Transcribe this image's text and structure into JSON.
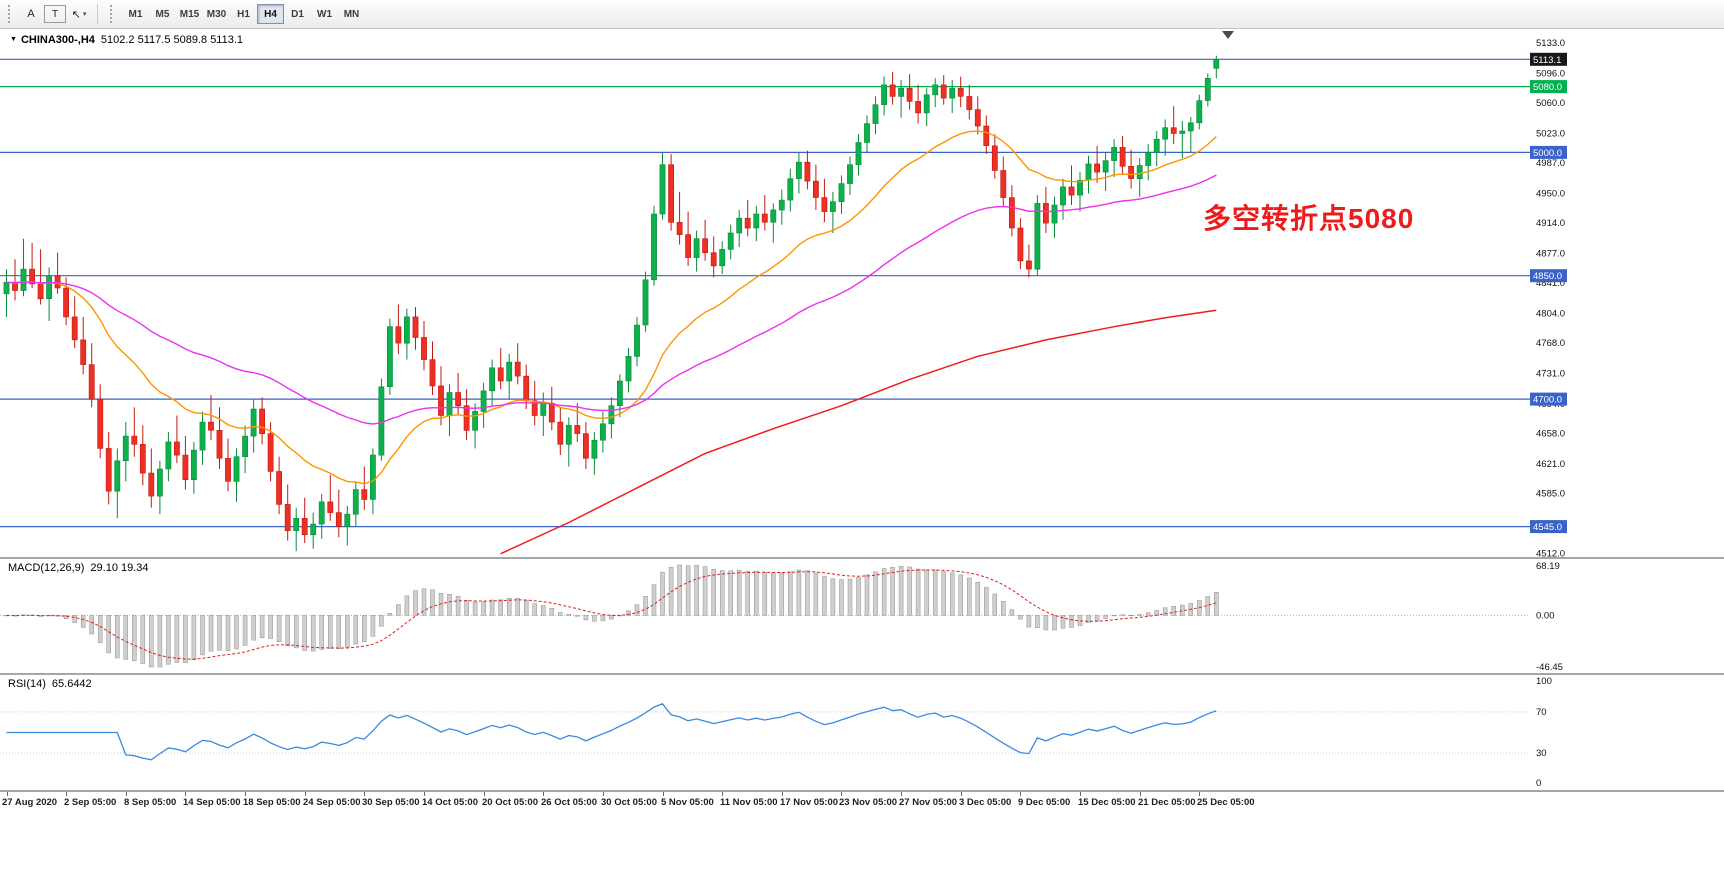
{
  "toolbar": {
    "tools": [
      {
        "name": "cursor-tool",
        "label": "A"
      },
      {
        "name": "text-tool",
        "label": "T"
      }
    ],
    "timeframes": [
      {
        "label": "M1"
      },
      {
        "label": "M5"
      },
      {
        "label": "M15"
      },
      {
        "label": "M30"
      },
      {
        "label": "H1"
      },
      {
        "label": "H4"
      },
      {
        "label": "D1"
      },
      {
        "label": "W1"
      },
      {
        "label": "MN"
      }
    ],
    "active_timeframe": "H4"
  },
  "chart": {
    "symbol_title": "CHINA300-,H4",
    "ohlc_display": "5102.2 5117.5 5089.8 5113.1",
    "annotation": {
      "text": "多空转折点5080",
      "color": "#ed1c1c"
    },
    "price_axis": {
      "ticks": [
        "5133.0",
        "5096.0",
        "5060.0",
        "5023.0",
        "4987.0",
        "4950.0",
        "4914.0",
        "4877.0",
        "4841.0",
        "4804.0",
        "4768.0",
        "4731.0",
        "4694.0",
        "4658.0",
        "4621.0",
        "4585.0",
        "4548.0",
        "4512.0"
      ]
    },
    "hlines": [
      {
        "label": "current-price",
        "price": 5113.1,
        "color": "#3a62c8",
        "badge": "5113.1",
        "badge_bg": "#17181b"
      },
      {
        "label": "level-5080",
        "price": 5080.0,
        "color": "#00b050",
        "badge": "5080.0",
        "badge_bg": "#00b050"
      },
      {
        "label": "level-5000",
        "price": 5000.0,
        "color": "#3a62c8",
        "badge": "5000.0",
        "badge_bg": "#3a62c8"
      },
      {
        "label": "level-4850",
        "price": 4850.0,
        "color": "#3a62c8",
        "badge": "4850.0",
        "badge_bg": "#3a62c8"
      },
      {
        "label": "level-4700",
        "price": 4700.0,
        "color": "#3a62c8",
        "badge": "4700.0",
        "badge_bg": "#3a62c8"
      },
      {
        "label": "level-4545",
        "price": 4545.0,
        "color": "#3a62c8",
        "badge": "4545.0",
        "badge_bg": "#3a62c8"
      }
    ],
    "colors": {
      "up": "#0db14b",
      "up_stroke": "#078a39",
      "down": "#ef2e24",
      "down_stroke": "#bf1a11",
      "ma_fast": "#ff9500",
      "ma_mid": "#ee30ee",
      "ma_long": "#f01c1c",
      "macd_bar": "#cfcfcf",
      "macd_bar_stroke": "#8f8f8f",
      "macd_signal": "#e02020",
      "rsi_line": "#3b8ae0",
      "hline_blue": "#3a62c8",
      "hline_green": "#00b050"
    }
  },
  "chart_data": {
    "type": "candlestick",
    "symbol": "CHINA300-",
    "timeframe": "H4",
    "title": "CHINA300-,H4 5102.2 5117.5 5089.8 5113.1",
    "price_range": [
      4508,
      5150
    ],
    "label_step": 7,
    "x_labels": [
      "27 Aug 2020",
      "2 Sep 05:00",
      "8 Sep 05:00",
      "14 Sep 05:00",
      "18 Sep 05:00",
      "24 Sep 05:00",
      "30 Sep 05:00",
      "14 Oct 05:00",
      "20 Oct 05:00",
      "26 Oct 05:00",
      "30 Oct 05:00",
      "5 Nov 05:00",
      "11 Nov 05:00",
      "17 Nov 05:00",
      "23 Nov 05:00",
      "27 Nov 05:00",
      "3 Dec 05:00",
      "9 Dec 05:00",
      "15 Dec 05:00",
      "21 Dec 05:00",
      "25 Dec 05:00"
    ],
    "candles": [
      [
        4828,
        4858,
        4800,
        4842
      ],
      [
        4842,
        4870,
        4820,
        4832
      ],
      [
        4832,
        4895,
        4825,
        4858
      ],
      [
        4858,
        4890,
        4835,
        4840
      ],
      [
        4840,
        4882,
        4815,
        4822
      ],
      [
        4822,
        4860,
        4795,
        4850
      ],
      [
        4850,
        4878,
        4828,
        4835
      ],
      [
        4835,
        4848,
        4790,
        4800
      ],
      [
        4800,
        4825,
        4762,
        4772
      ],
      [
        4772,
        4800,
        4730,
        4742
      ],
      [
        4742,
        4768,
        4690,
        4700
      ],
      [
        4700,
        4718,
        4628,
        4640
      ],
      [
        4640,
        4660,
        4572,
        4588
      ],
      [
        4588,
        4640,
        4555,
        4625
      ],
      [
        4625,
        4672,
        4600,
        4655
      ],
      [
        4655,
        4690,
        4630,
        4645
      ],
      [
        4645,
        4668,
        4595,
        4610
      ],
      [
        4610,
        4640,
        4568,
        4582
      ],
      [
        4582,
        4625,
        4560,
        4615
      ],
      [
        4615,
        4660,
        4600,
        4648
      ],
      [
        4648,
        4680,
        4622,
        4632
      ],
      [
        4632,
        4655,
        4590,
        4602
      ],
      [
        4602,
        4648,
        4585,
        4638
      ],
      [
        4638,
        4685,
        4620,
        4672
      ],
      [
        4672,
        4705,
        4650,
        4662
      ],
      [
        4662,
        4690,
        4615,
        4628
      ],
      [
        4628,
        4652,
        4588,
        4600
      ],
      [
        4600,
        4640,
        4575,
        4630
      ],
      [
        4630,
        4668,
        4610,
        4655
      ],
      [
        4655,
        4700,
        4635,
        4688
      ],
      [
        4688,
        4702,
        4645,
        4658
      ],
      [
        4658,
        4672,
        4600,
        4612
      ],
      [
        4612,
        4630,
        4560,
        4572
      ],
      [
        4572,
        4596,
        4528,
        4540
      ],
      [
        4540,
        4568,
        4515,
        4555
      ],
      [
        4555,
        4580,
        4525,
        4535
      ],
      [
        4535,
        4562,
        4518,
        4548
      ],
      [
        4548,
        4585,
        4530,
        4575
      ],
      [
        4575,
        4608,
        4552,
        4562
      ],
      [
        4562,
        4590,
        4532,
        4545
      ],
      [
        4545,
        4570,
        4522,
        4560
      ],
      [
        4560,
        4600,
        4545,
        4590
      ],
      [
        4590,
        4618,
        4565,
        4578
      ],
      [
        4578,
        4640,
        4560,
        4632
      ],
      [
        4632,
        4725,
        4625,
        4715
      ],
      [
        4715,
        4798,
        4705,
        4788
      ],
      [
        4788,
        4815,
        4755,
        4768
      ],
      [
        4768,
        4810,
        4748,
        4800
      ],
      [
        4800,
        4812,
        4760,
        4775
      ],
      [
        4775,
        4795,
        4735,
        4748
      ],
      [
        4748,
        4770,
        4705,
        4716
      ],
      [
        4716,
        4740,
        4668,
        4680
      ],
      [
        4680,
        4718,
        4655,
        4708
      ],
      [
        4708,
        4732,
        4680,
        4692
      ],
      [
        4692,
        4712,
        4650,
        4662
      ],
      [
        4662,
        4695,
        4640,
        4685
      ],
      [
        4685,
        4720,
        4665,
        4710
      ],
      [
        4710,
        4748,
        4692,
        4738
      ],
      [
        4738,
        4762,
        4712,
        4722
      ],
      [
        4722,
        4755,
        4700,
        4745
      ],
      [
        4745,
        4768,
        4718,
        4728
      ],
      [
        4728,
        4742,
        4688,
        4698
      ],
      [
        4698,
        4722,
        4668,
        4680
      ],
      [
        4680,
        4708,
        4655,
        4695
      ],
      [
        4695,
        4715,
        4662,
        4672
      ],
      [
        4672,
        4690,
        4632,
        4645
      ],
      [
        4645,
        4678,
        4618,
        4668
      ],
      [
        4668,
        4695,
        4648,
        4658
      ],
      [
        4658,
        4672,
        4615,
        4628
      ],
      [
        4628,
        4660,
        4608,
        4650
      ],
      [
        4650,
        4685,
        4635,
        4670
      ],
      [
        4670,
        4702,
        4652,
        4692
      ],
      [
        4692,
        4730,
        4678,
        4722
      ],
      [
        4722,
        4762,
        4708,
        4752
      ],
      [
        4752,
        4800,
        4740,
        4790
      ],
      [
        4790,
        4855,
        4782,
        4845
      ],
      [
        4845,
        4935,
        4838,
        4925
      ],
      [
        4925,
        5000,
        4918,
        4985
      ],
      [
        4985,
        4998,
        4905,
        4915
      ],
      [
        4915,
        4952,
        4888,
        4900
      ],
      [
        4900,
        4928,
        4862,
        4872
      ],
      [
        4872,
        4905,
        4855,
        4895
      ],
      [
        4895,
        4918,
        4868,
        4878
      ],
      [
        4878,
        4898,
        4848,
        4862
      ],
      [
        4862,
        4892,
        4852,
        4882
      ],
      [
        4882,
        4912,
        4870,
        4902
      ],
      [
        4902,
        4930,
        4885,
        4920
      ],
      [
        4920,
        4942,
        4898,
        4908
      ],
      [
        4908,
        4935,
        4892,
        4925
      ],
      [
        4925,
        4948,
        4905,
        4915
      ],
      [
        4915,
        4938,
        4890,
        4930
      ],
      [
        4930,
        4955,
        4912,
        4942
      ],
      [
        4942,
        4980,
        4928,
        4968
      ],
      [
        4968,
        5000,
        4950,
        4988
      ],
      [
        4988,
        5002,
        4955,
        4965
      ],
      [
        4965,
        4985,
        4930,
        4945
      ],
      [
        4945,
        4968,
        4915,
        4928
      ],
      [
        4928,
        4952,
        4902,
        4940
      ],
      [
        4940,
        4972,
        4925,
        4962
      ],
      [
        4962,
        4995,
        4948,
        4985
      ],
      [
        4985,
        5022,
        4972,
        5012
      ],
      [
        5012,
        5045,
        5000,
        5035
      ],
      [
        5035,
        5068,
        5022,
        5058
      ],
      [
        5058,
        5092,
        5045,
        5082
      ],
      [
        5082,
        5098,
        5058,
        5068
      ],
      [
        5068,
        5088,
        5042,
        5078
      ],
      [
        5078,
        5095,
        5052,
        5062
      ],
      [
        5062,
        5082,
        5035,
        5048
      ],
      [
        5048,
        5078,
        5032,
        5070
      ],
      [
        5070,
        5090,
        5055,
        5082
      ],
      [
        5082,
        5094,
        5058,
        5066
      ],
      [
        5066,
        5088,
        5048,
        5078
      ],
      [
        5078,
        5092,
        5055,
        5068
      ],
      [
        5068,
        5082,
        5040,
        5052
      ],
      [
        5052,
        5068,
        5022,
        5032
      ],
      [
        5032,
        5045,
        4998,
        5008
      ],
      [
        5008,
        5022,
        4968,
        4978
      ],
      [
        4978,
        4995,
        4935,
        4945
      ],
      [
        4945,
        4960,
        4898,
        4908
      ],
      [
        4908,
        4920,
        4858,
        4868
      ],
      [
        4868,
        4888,
        4848,
        4858
      ],
      [
        4858,
        4948,
        4850,
        4938
      ],
      [
        4938,
        4958,
        4902,
        4914
      ],
      [
        4914,
        4946,
        4896,
        4936
      ],
      [
        4936,
        4968,
        4918,
        4958
      ],
      [
        4958,
        4984,
        4936,
        4948
      ],
      [
        4948,
        4976,
        4928,
        4966
      ],
      [
        4966,
        4996,
        4950,
        4986
      ],
      [
        4986,
        5008,
        4963,
        4976
      ],
      [
        4976,
        5000,
        4953,
        4990
      ],
      [
        4990,
        5016,
        4970,
        5006
      ],
      [
        5006,
        5020,
        4973,
        4983
      ],
      [
        4983,
        5003,
        4956,
        4968
      ],
      [
        4968,
        4993,
        4946,
        4984
      ],
      [
        4984,
        5010,
        4966,
        5000
      ],
      [
        5000,
        5026,
        4983,
        5016
      ],
      [
        5016,
        5040,
        4996,
        5030
      ],
      [
        5030,
        5056,
        5010,
        5023
      ],
      [
        5023,
        5038,
        4993,
        5026
      ],
      [
        5026,
        5043,
        5000,
        5036
      ],
      [
        5036,
        5070,
        5028,
        5063
      ],
      [
        5063,
        5096,
        5056,
        5090
      ],
      [
        5102.2,
        5117.5,
        5089.8,
        5113.1
      ]
    ],
    "overlays": {
      "ma_fast": {
        "period": 21,
        "color": "#ff9500"
      },
      "ma_mid": {
        "period": 55,
        "color": "#ee30ee"
      },
      "ma_long": {
        "color": "#f01c1c",
        "points": [
          [
            58,
            4512
          ],
          [
            66,
            4550
          ],
          [
            74,
            4592
          ],
          [
            82,
            4634
          ],
          [
            90,
            4664
          ],
          [
            98,
            4692
          ],
          [
            106,
            4724
          ],
          [
            114,
            4752
          ],
          [
            122,
            4772
          ],
          [
            130,
            4788
          ],
          [
            136,
            4799
          ],
          [
            142,
            4808
          ]
        ]
      }
    },
    "indicators": [
      {
        "type": "MACD",
        "params": [
          12,
          26,
          9
        ],
        "title": "MACD(12,26,9)",
        "values_display": "29.10 19.34",
        "axis_labels": [
          "68.19",
          "0.00",
          "-46.45"
        ]
      },
      {
        "type": "RSI",
        "params": [
          14
        ],
        "title": "RSI(14)",
        "values_display": "65.6442",
        "axis_labels": [
          "100",
          "70",
          "30",
          "0"
        ],
        "levels": [
          70,
          30
        ]
      }
    ]
  }
}
